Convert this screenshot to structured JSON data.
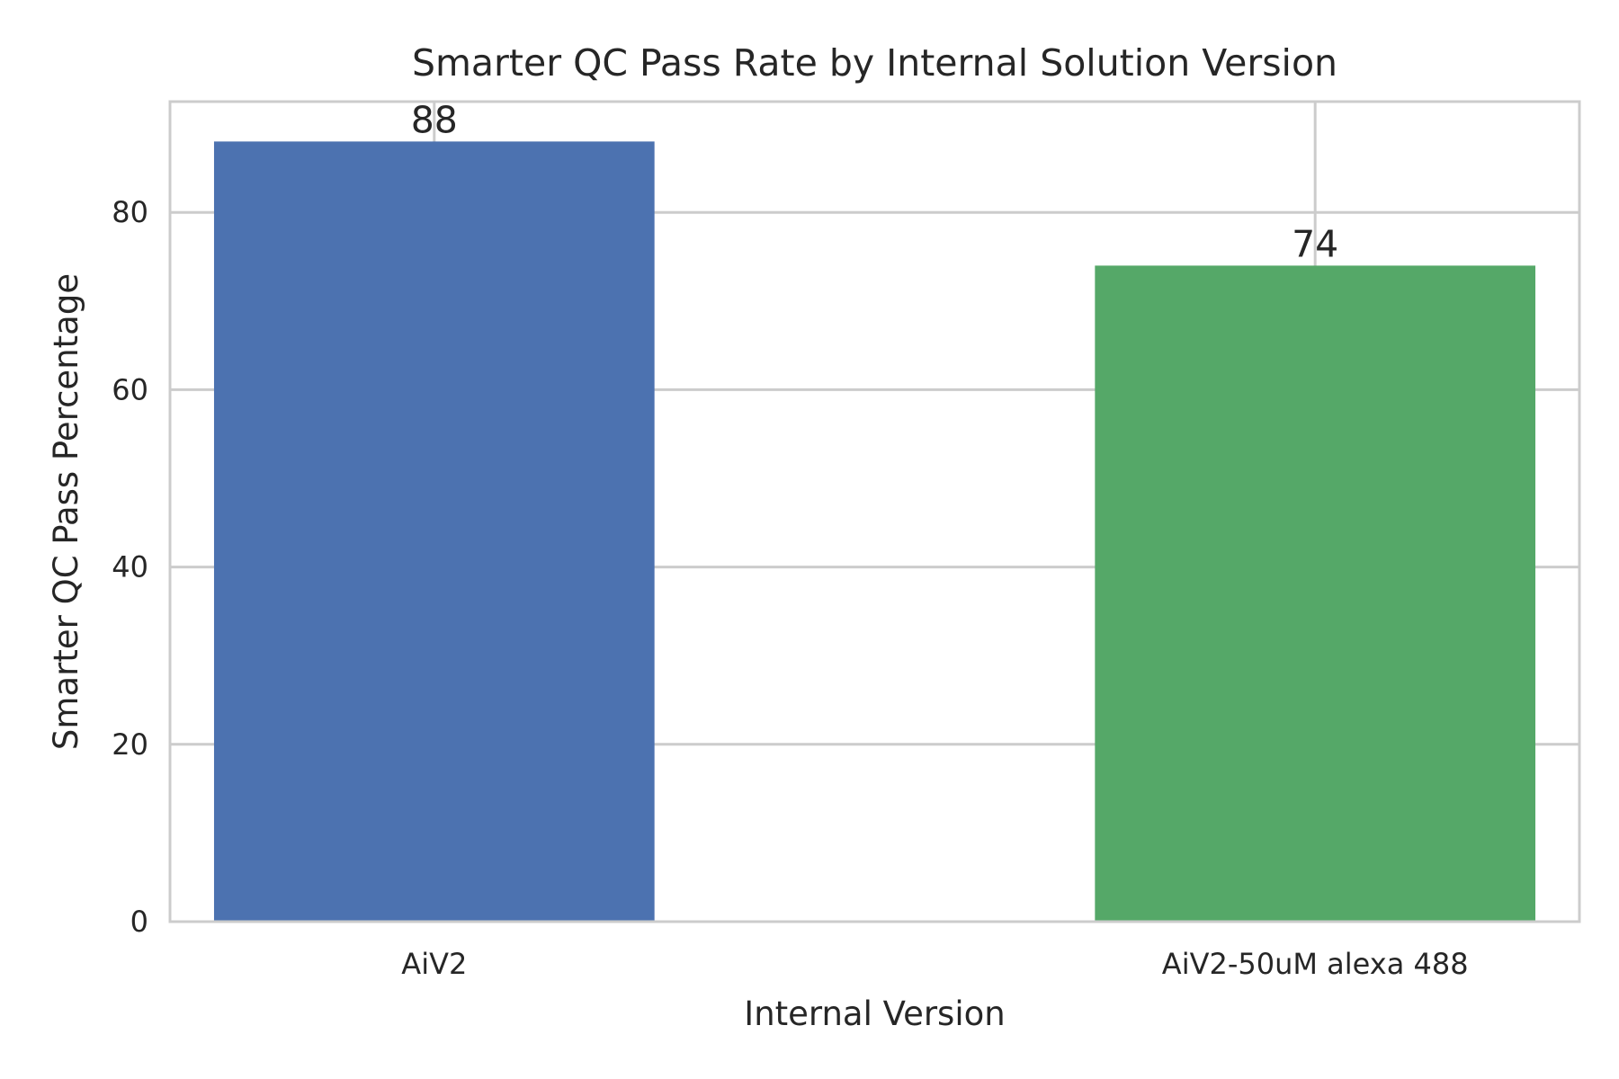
{
  "chart_data": {
    "type": "bar",
    "title": "Smarter QC Pass Rate by Internal Solution Version",
    "xlabel": "Internal Version",
    "ylabel": "Smarter QC Pass Percentage",
    "categories": [
      "AiV2",
      "AiV2-50uM alexa 488"
    ],
    "values": [
      88,
      74
    ],
    "data_labels": [
      "88",
      "74"
    ],
    "bar_colors": [
      "#4c72b0",
      "#55a868"
    ],
    "ylim": [
      0,
      92.5
    ],
    "yticks": [
      0,
      20,
      40,
      60,
      80
    ],
    "ytick_labels": [
      "0",
      "20",
      "40",
      "60",
      "80"
    ],
    "grid": true,
    "legend": "none"
  }
}
